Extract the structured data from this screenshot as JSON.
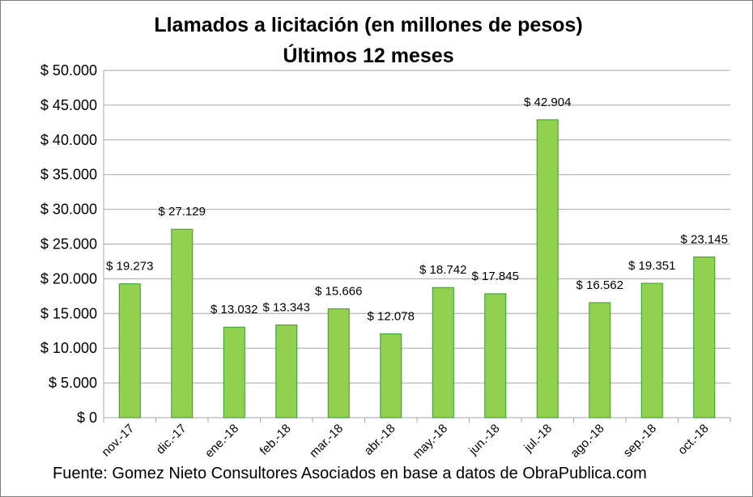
{
  "chart_data": {
    "type": "bar",
    "title": "Llamados a licitación (en millones de pesos)",
    "subtitle": "Últimos 12 meses",
    "categories": [
      "nov.-17",
      "dic.-17",
      "ene.-18",
      "feb.-18",
      "mar.-18",
      "abr.-18",
      "may.-18",
      "jun.-18",
      "jul.-18",
      "ago.-18",
      "sep.-18",
      "oct.-18"
    ],
    "values": [
      19273,
      27129,
      13032,
      13343,
      15666,
      12078,
      18742,
      17845,
      42904,
      16562,
      19351,
      23145
    ],
    "data_labels": [
      "$ 19.273",
      "$ 27.129",
      "$ 13.032",
      "$ 13.343",
      "$ 15.666",
      "$ 12.078",
      "$ 18.742",
      "$ 17.845",
      "$ 42.904",
      "$ 16.562",
      "$ 19.351",
      "$ 23.145"
    ],
    "y_ticks": [
      0,
      5000,
      10000,
      15000,
      20000,
      25000,
      30000,
      35000,
      40000,
      45000,
      50000
    ],
    "y_tick_labels": [
      "$ 0",
      "$ 5.000",
      "$ 10.000",
      "$ 15.000",
      "$ 20.000",
      "$ 25.000",
      "$ 30.000",
      "$ 35.000",
      "$ 40.000",
      "$ 45.000",
      "$ 50.000"
    ],
    "ylim": [
      0,
      50000
    ],
    "grid": true,
    "colors": {
      "bar_fill": "#92d050",
      "bar_stroke": "#2e9e2e",
      "grid": "#a6a6a6"
    }
  },
  "source": "Fuente: Gomez Nieto Consultores Asociados en base a datos de ObraPublica.com"
}
